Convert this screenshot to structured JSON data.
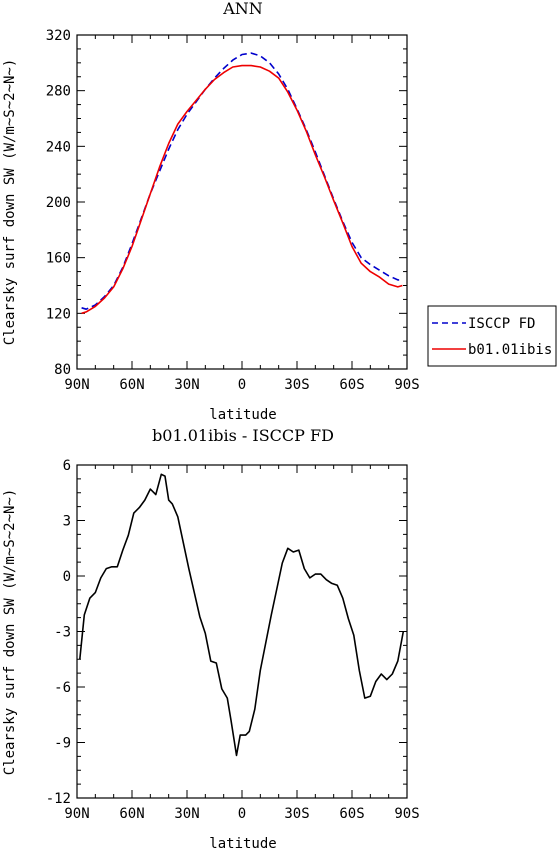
{
  "colors": {
    "isccp": "#0000cc",
    "model": "#ee0000",
    "diff": "#000000"
  },
  "legend": {
    "entries": [
      "ISCCP FD",
      "b01.01ibis"
    ]
  },
  "chart_data": [
    {
      "type": "line",
      "title": "ANN",
      "xlabel": "latitude",
      "ylabel": "Clearsky surf down SW (W/m~S~2~N~)",
      "xlim": [
        -90,
        90
      ],
      "ylim": [
        80,
        320
      ],
      "x_ticks": [
        -90,
        -60,
        -30,
        0,
        30,
        60,
        90
      ],
      "x_tick_labels": [
        "90N",
        "60N",
        "30N",
        "0",
        "30S",
        "60S",
        "90S"
      ],
      "y_ticks": [
        80,
        120,
        160,
        200,
        240,
        280,
        320
      ],
      "y_tick_labels": [
        "80",
        "120",
        "160",
        "200",
        "240",
        "280",
        "320"
      ],
      "legend_position": "right",
      "x": [
        -87.5,
        -85,
        -80,
        -75,
        -70,
        -65,
        -60,
        -55,
        -50,
        -45,
        -40,
        -35,
        -30,
        -25,
        -20,
        -15,
        -10,
        -5,
        0,
        5,
        10,
        15,
        20,
        25,
        30,
        35,
        40,
        45,
        50,
        55,
        60,
        65,
        70,
        75,
        80,
        85,
        87.5
      ],
      "series": [
        {
          "name": "ISCCP FD",
          "style": "dashed",
          "values": [
            124,
            123,
            126,
            132,
            140,
            153,
            170,
            188,
            206,
            222,
            238,
            252,
            263,
            272,
            281,
            289,
            296,
            302,
            306,
            307,
            305,
            300,
            292,
            281,
            267,
            252,
            236,
            219,
            202,
            186,
            171,
            160,
            155,
            151,
            147,
            144,
            144
          ]
        },
        {
          "name": "b01.01ibis",
          "style": "solid",
          "values": [
            120,
            121,
            125,
            131,
            139,
            152,
            168,
            187,
            206,
            225,
            242,
            256,
            265,
            273,
            281,
            288,
            293,
            297,
            298,
            298,
            297,
            294,
            289,
            279,
            266,
            251,
            234,
            218,
            201,
            185,
            168,
            156,
            150,
            146,
            141,
            139,
            140
          ]
        }
      ]
    },
    {
      "type": "line",
      "title": "b01.01ibis - ISCCP FD",
      "xlabel": "latitude",
      "ylabel": "Clearsky surf down SW (W/m~S~2~N~)",
      "xlim": [
        -90,
        90
      ],
      "ylim": [
        -12,
        6
      ],
      "x_ticks": [
        -90,
        -60,
        -30,
        0,
        30,
        60,
        90
      ],
      "x_tick_labels": [
        "90N",
        "60N",
        "30N",
        "0",
        "30S",
        "60S",
        "90S"
      ],
      "y_ticks": [
        -12,
        -9,
        -6,
        -3,
        0,
        3,
        6
      ],
      "y_tick_labels": [
        "-12",
        "-9",
        "-6",
        "-3",
        "0",
        "3",
        "6"
      ],
      "series": [
        {
          "style": "solid",
          "x": [
            -88.5,
            -86,
            -83,
            -80,
            -77,
            -74,
            -71,
            -68,
            -65,
            -62,
            -59,
            -56,
            -53,
            -50,
            -47,
            -44,
            -42,
            -40,
            -38,
            -35,
            -32,
            -29,
            -26,
            -23,
            -20,
            -17,
            -14,
            -11,
            -8,
            -6,
            -3,
            -1,
            2,
            4,
            7,
            10,
            13,
            16,
            19,
            22,
            25,
            28,
            31,
            34,
            37,
            40,
            43,
            46,
            49,
            52,
            55,
            58,
            61,
            64,
            67,
            70,
            73,
            76,
            79,
            82,
            85,
            88
          ],
          "values": [
            -4.5,
            -2.1,
            -1.2,
            -0.9,
            -0.1,
            0.4,
            0.5,
            0.5,
            1.4,
            2.2,
            3.4,
            3.7,
            4.1,
            4.7,
            4.4,
            5.5,
            5.4,
            4.1,
            3.9,
            3.2,
            1.8,
            0.4,
            -0.9,
            -2.2,
            -3.1,
            -4.6,
            -4.7,
            -6.1,
            -6.6,
            -7.8,
            -9.7,
            -8.6,
            -8.6,
            -8.4,
            -7.2,
            -5.1,
            -3.6,
            -2.1,
            -0.7,
            0.7,
            1.5,
            1.3,
            1.4,
            0.4,
            -0.1,
            0.1,
            0.1,
            -0.2,
            -0.4,
            -0.5,
            -1.2,
            -2.3,
            -3.2,
            -5.1,
            -6.6,
            -6.5,
            -5.7,
            -5.3,
            -5.6,
            -5.3,
            -4.6,
            -3.0
          ]
        }
      ]
    }
  ]
}
